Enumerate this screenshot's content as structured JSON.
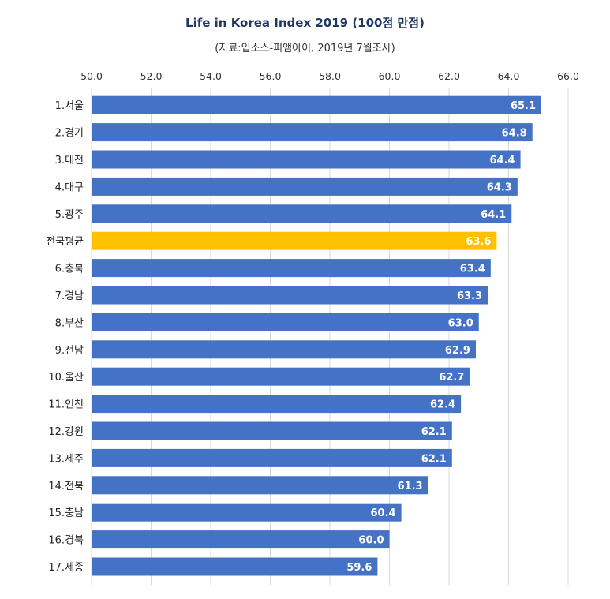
{
  "chart_data": {
    "type": "bar",
    "orientation": "horizontal",
    "title": "Life in Korea Index 2019 (100점 만점)",
    "subtitle": "(자료:입소스-피앰아이, 2019년 7월조사)",
    "categories": [
      "1.서울",
      "2.경기",
      "3.대전",
      "4.대구",
      "5.광주",
      "전국평균",
      "6.충북",
      "7.경남",
      "8.부산",
      "9.전남",
      "10.울산",
      "11.인천",
      "12.강원",
      "13.제주",
      "14.전북",
      "15.충남",
      "16.경북",
      "17.세종"
    ],
    "values": [
      65.1,
      64.8,
      64.4,
      64.3,
      64.1,
      63.6,
      63.4,
      63.3,
      63.0,
      62.9,
      62.7,
      62.4,
      62.1,
      62.1,
      61.3,
      60.4,
      60.0,
      59.6
    ],
    "value_labels": [
      "65.1",
      "64.8",
      "64.4",
      "64.3",
      "64.1",
      "63.6",
      "63.4",
      "63.3",
      "63.0",
      "62.9",
      "62.7",
      "62.4",
      "62.1",
      "62.1",
      "61.3",
      "60.4",
      "60.0",
      "59.6"
    ],
    "highlight_category": "전국평균",
    "xlim": [
      50.0,
      66.0
    ],
    "x_ticks": [
      "50.0",
      "52.0",
      "54.0",
      "56.0",
      "58.0",
      "60.0",
      "62.0",
      "64.0",
      "66.0"
    ],
    "x_axis_position": "top",
    "grid": true,
    "legend": "none",
    "colors": {
      "bar": "#4472c4",
      "highlight": "#ffc000",
      "grid": "#d9d9d9"
    }
  }
}
